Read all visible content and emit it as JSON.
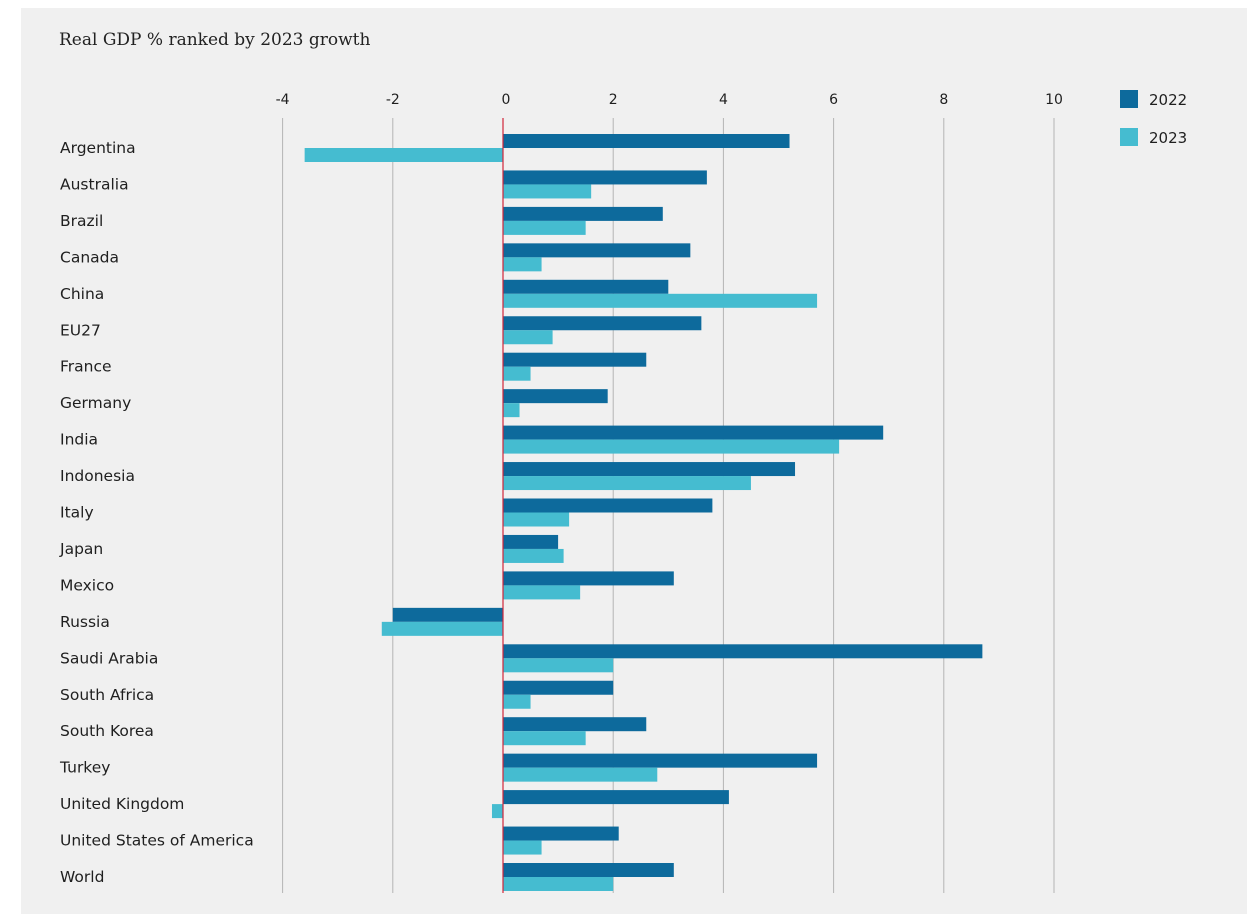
{
  "chart_data": {
    "type": "bar",
    "orientation": "horizontal",
    "title": "Real GDP % ranked by 2023 growth",
    "xlim": [
      -4,
      10
    ],
    "xticks": [
      -4,
      -2,
      0,
      2,
      4,
      6,
      8,
      10
    ],
    "xtick_labels": [
      "-4",
      "-2",
      "0",
      "2",
      "4",
      "6",
      "8",
      "10"
    ],
    "grid": true,
    "legend_position": "top-right",
    "categories": [
      "Argentina",
      "Australia",
      "Brazil",
      "Canada",
      "China",
      "EU27",
      "France",
      "Germany",
      "India",
      "Indonesia",
      "Italy",
      "Japan",
      "Mexico",
      "Russia",
      "Saudi Arabia",
      "South Africa",
      "South Korea",
      "Turkey",
      "United Kingdom",
      "United States of America",
      "World"
    ],
    "series": [
      {
        "name": "2022",
        "color": "#0d6a9c",
        "values": [
          5.2,
          3.7,
          2.9,
          3.4,
          3.0,
          3.6,
          2.6,
          1.9,
          6.9,
          5.3,
          3.8,
          1.0,
          3.1,
          -2.0,
          8.7,
          2.0,
          2.6,
          5.7,
          4.1,
          2.1,
          3.1
        ]
      },
      {
        "name": "2023",
        "color": "#45bcd0",
        "values": [
          -3.6,
          1.6,
          1.5,
          0.7,
          5.7,
          0.9,
          0.5,
          0.3,
          6.1,
          4.5,
          1.2,
          1.1,
          1.4,
          -2.2,
          2.0,
          0.5,
          1.5,
          2.8,
          -0.2,
          0.7,
          2.0
        ]
      }
    ],
    "zero_line_color": "#d0253a",
    "grid_color": "#b4b4b4"
  }
}
